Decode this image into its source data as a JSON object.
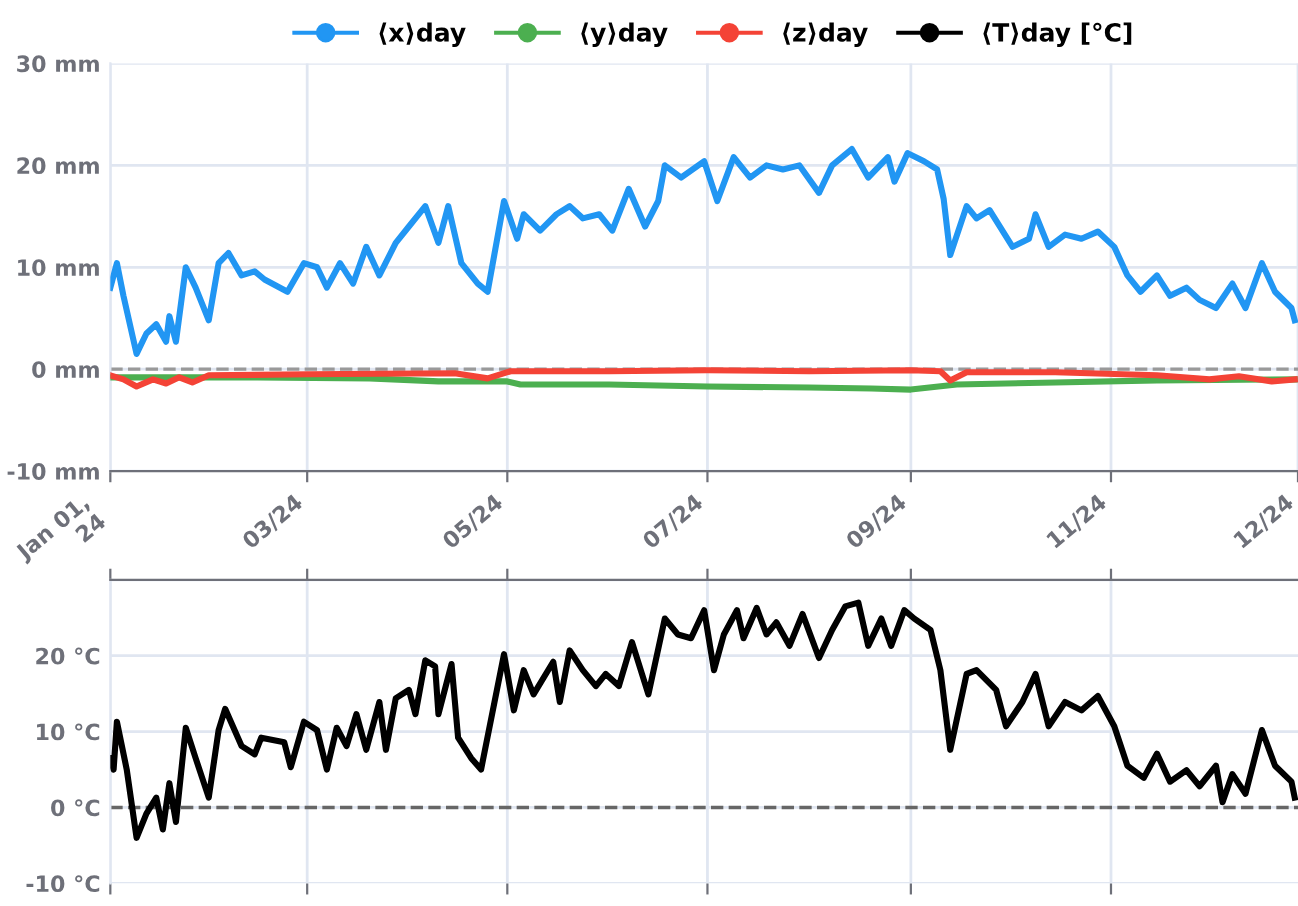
{
  "chart_data": [
    {
      "type": "line",
      "legend": "top",
      "grid": true,
      "xlim": [
        "2024-01-01",
        "2024-12-28"
      ],
      "xticks": [
        {
          "value": "2024-01-01",
          "label": "Jan 01,\n24"
        },
        {
          "value": "2024-03-01",
          "label": "03/24"
        },
        {
          "value": "2024-05-01",
          "label": "05/24"
        },
        {
          "value": "2024-07-01",
          "label": "07/24"
        },
        {
          "value": "2024-09-01",
          "label": "09/24"
        },
        {
          "value": "2024-11-01",
          "label": "11/24"
        },
        {
          "value": "2024-12-28",
          "label": "12/24"
        }
      ],
      "ylim": [
        -10,
        30
      ],
      "yticks": [
        {
          "value": -10,
          "label": "-10 mm"
        },
        {
          "value": 0,
          "label": "0 mm"
        },
        {
          "value": 10,
          "label": "10 mm"
        },
        {
          "value": 20,
          "label": "20 mm"
        },
        {
          "value": 30,
          "label": "30 mm"
        }
      ],
      "ref_lines": [
        {
          "axis": "y",
          "value": 0,
          "label": null,
          "color": "#999999",
          "line_style": "dashed"
        }
      ],
      "series": [
        {
          "name": "⟨x⟩day",
          "color": "#2196f3",
          "x": [
            "2024-01-01",
            "2024-01-03",
            "2024-01-05",
            "2024-01-09",
            "2024-01-12",
            "2024-01-15",
            "2024-01-18",
            "2024-01-19",
            "2024-01-21",
            "2024-01-24",
            "2024-01-27",
            "2024-01-31",
            "2024-02-03",
            "2024-02-06",
            "2024-02-10",
            "2024-02-14",
            "2024-02-17",
            "2024-02-24",
            "2024-02-29",
            "2024-03-04",
            "2024-03-07",
            "2024-03-11",
            "2024-03-15",
            "2024-03-19",
            "2024-03-23",
            "2024-03-28",
            "2024-04-01",
            "2024-04-06",
            "2024-04-10",
            "2024-04-13",
            "2024-04-17",
            "2024-04-22",
            "2024-04-25",
            "2024-04-30",
            "2024-05-04",
            "2024-05-06",
            "2024-05-11",
            "2024-05-16",
            "2024-05-20",
            "2024-05-24",
            "2024-05-29",
            "2024-06-02",
            "2024-06-07",
            "2024-06-12",
            "2024-06-16",
            "2024-06-18",
            "2024-06-23",
            "2024-06-30",
            "2024-07-04",
            "2024-07-09",
            "2024-07-14",
            "2024-07-19",
            "2024-07-24",
            "2024-07-29",
            "2024-08-04",
            "2024-08-08",
            "2024-08-14",
            "2024-08-19",
            "2024-08-25",
            "2024-08-27",
            "2024-08-31",
            "2024-09-05",
            "2024-09-09",
            "2024-09-11",
            "2024-09-13",
            "2024-09-18",
            "2024-09-21",
            "2024-09-25",
            "2024-10-02",
            "2024-10-07",
            "2024-10-09",
            "2024-10-13",
            "2024-10-18",
            "2024-10-23",
            "2024-10-28",
            "2024-11-02",
            "2024-11-06",
            "2024-11-10",
            "2024-11-15",
            "2024-11-19",
            "2024-11-24",
            "2024-11-28",
            "2024-12-03",
            "2024-12-08",
            "2024-12-12",
            "2024-12-17",
            "2024-12-21",
            "2024-12-26",
            "2024-12-27"
          ],
          "values": [
            8.0,
            10.4,
            7.2,
            1.5,
            3.5,
            4.4,
            2.7,
            5.2,
            2.7,
            10,
            8,
            4.8,
            10.4,
            11.4,
            9.2,
            9.6,
            8.8,
            7.6,
            10.4,
            10,
            8,
            10.4,
            8.4,
            12,
            9.2,
            12.4,
            14,
            16,
            12.4,
            16,
            10.4,
            8.4,
            7.6,
            16.5,
            12.8,
            15.2,
            13.6,
            15.2,
            16,
            14.8,
            15.2,
            13.6,
            17.7,
            14,
            16.5,
            20,
            18.8,
            20.4,
            16.5,
            20.8,
            18.8,
            20,
            19.6,
            20,
            17.3,
            20,
            21.6,
            18.8,
            20.8,
            18.4,
            21.2,
            20.4,
            19.6,
            16.7,
            11.2,
            16,
            14.8,
            15.6,
            12,
            12.8,
            15.2,
            12,
            13.2,
            12.8,
            13.5,
            12,
            9.2,
            7.6,
            9.2,
            7.2,
            8,
            6.8,
            6,
            8.4,
            6,
            10.4,
            7.6,
            6,
            4.8
          ]
        },
        {
          "name": "⟨y⟩day",
          "color": "#4caf50",
          "x": [
            "2024-01-01",
            "2024-02-15",
            "2024-03-20",
            "2024-04-10",
            "2024-05-01",
            "2024-05-05",
            "2024-06-01",
            "2024-07-01",
            "2024-08-01",
            "2024-08-20",
            "2024-09-01",
            "2024-09-15",
            "2024-10-15",
            "2024-11-15",
            "2024-12-27"
          ],
          "values": [
            -0.8,
            -0.8,
            -0.9,
            -1.2,
            -1.2,
            -1.5,
            -1.5,
            -1.7,
            -1.8,
            -1.9,
            -2.0,
            -1.5,
            -1.3,
            -1.1,
            -1.0
          ]
        },
        {
          "name": "⟨z⟩day",
          "color": "#f44336",
          "x": [
            "2024-01-01",
            "2024-01-05",
            "2024-01-09",
            "2024-01-14",
            "2024-01-18",
            "2024-01-22",
            "2024-01-26",
            "2024-01-31",
            "2024-03-01",
            "2024-04-15",
            "2024-04-25",
            "2024-05-02",
            "2024-06-01",
            "2024-07-01",
            "2024-08-01",
            "2024-09-01",
            "2024-09-10",
            "2024-09-13",
            "2024-09-18",
            "2024-10-15",
            "2024-11-15",
            "2024-12-01",
            "2024-12-10",
            "2024-12-20",
            "2024-12-27"
          ],
          "values": [
            -0.6,
            -1.0,
            -1.7,
            -1.0,
            -1.4,
            -0.8,
            -1.3,
            -0.6,
            -0.5,
            -0.4,
            -0.9,
            -0.2,
            -0.2,
            -0.1,
            -0.2,
            -0.1,
            -0.2,
            -1.1,
            -0.3,
            -0.3,
            -0.6,
            -1.0,
            -0.7,
            -1.2,
            -1.0
          ]
        }
      ]
    },
    {
      "type": "line",
      "legend": "top",
      "grid": true,
      "tick_labels": "y",
      "xlim": [
        "2024-01-01",
        "2024-12-28"
      ],
      "xticks": [
        {
          "value": "2024-01-01",
          "label": null
        },
        {
          "value": "2024-03-01",
          "label": null
        },
        {
          "value": "2024-05-01",
          "label": null
        },
        {
          "value": "2024-07-01",
          "label": null
        },
        {
          "value": "2024-09-01",
          "label": null
        },
        {
          "value": "2024-11-01",
          "label": null
        }
      ],
      "ylim": [
        -10,
        30
      ],
      "yticks": [
        {
          "value": -10,
          "label": "-10 °C"
        },
        {
          "value": 0,
          "label": "0 °C"
        },
        {
          "value": 10,
          "label": "10 °C"
        },
        {
          "value": 20,
          "label": "20 °C"
        },
        {
          "value": 30,
          "label": null
        }
      ],
      "ref_lines": [
        {
          "axis": "y",
          "value": 0,
          "label": null,
          "color": "#666666",
          "line_style": "dashed"
        }
      ],
      "series": [
        {
          "name": "⟨T⟩day [°C]",
          "color": "#000000",
          "x": [
            "2024-01-01",
            "2024-01-02",
            "2024-01-03",
            "2024-01-06",
            "2024-01-09",
            "2024-01-12",
            "2024-01-15",
            "2024-01-17",
            "2024-01-19",
            "2024-01-21",
            "2024-01-24",
            "2024-01-27",
            "2024-01-31",
            "2024-02-03",
            "2024-02-05",
            "2024-02-10",
            "2024-02-14",
            "2024-02-16",
            "2024-02-23",
            "2024-02-25",
            "2024-02-29",
            "2024-03-04",
            "2024-03-07",
            "2024-03-10",
            "2024-03-13",
            "2024-03-16",
            "2024-03-19",
            "2024-03-23",
            "2024-03-25",
            "2024-03-28",
            "2024-04-01",
            "2024-04-03",
            "2024-04-06",
            "2024-04-09",
            "2024-04-10",
            "2024-04-14",
            "2024-04-16",
            "2024-04-20",
            "2024-04-23",
            "2024-04-30",
            "2024-05-03",
            "2024-05-06",
            "2024-05-09",
            "2024-05-15",
            "2024-05-17",
            "2024-05-20",
            "2024-05-24",
            "2024-05-28",
            "2024-05-31",
            "2024-06-04",
            "2024-06-08",
            "2024-06-13",
            "2024-06-18",
            "2024-06-22",
            "2024-06-26",
            "2024-06-30",
            "2024-07-03",
            "2024-07-06",
            "2024-07-10",
            "2024-07-12",
            "2024-07-16",
            "2024-07-19",
            "2024-07-22",
            "2024-07-26",
            "2024-07-30",
            "2024-08-04",
            "2024-08-08",
            "2024-08-12",
            "2024-08-16",
            "2024-08-19",
            "2024-08-23",
            "2024-08-26",
            "2024-08-30",
            "2024-09-02",
            "2024-09-07",
            "2024-09-10",
            "2024-09-13",
            "2024-09-18",
            "2024-09-21",
            "2024-09-27",
            "2024-09-30",
            "2024-10-05",
            "2024-10-09",
            "2024-10-13",
            "2024-10-18",
            "2024-10-23",
            "2024-10-28",
            "2024-11-02",
            "2024-11-06",
            "2024-11-11",
            "2024-11-15",
            "2024-11-19",
            "2024-11-24",
            "2024-11-28",
            "2024-12-03",
            "2024-12-05",
            "2024-12-08",
            "2024-12-12",
            "2024-12-17",
            "2024-12-21",
            "2024-12-26",
            "2024-12-27"
          ],
          "values": [
            6.5,
            5,
            11.3,
            5,
            -4,
            -0.8,
            1.3,
            -2.9,
            3.2,
            -1.9,
            10.5,
            6.5,
            1.3,
            10.2,
            13,
            8.1,
            7,
            9.2,
            8.6,
            5.3,
            11.3,
            10.2,
            5,
            10.5,
            8.1,
            12.3,
            7.6,
            13.9,
            7.6,
            14.4,
            15.5,
            12.3,
            19.4,
            18.6,
            12.3,
            18.9,
            9.2,
            6.5,
            5,
            20.2,
            12.8,
            18.1,
            14.9,
            19.2,
            13.9,
            20.7,
            18.1,
            16,
            17.6,
            16,
            21.8,
            14.9,
            24.9,
            22.8,
            22.3,
            26,
            18.1,
            22.8,
            26,
            22.3,
            26.3,
            22.8,
            24.4,
            21.3,
            25.5,
            19.7,
            23.4,
            26.5,
            27,
            21.3,
            24.9,
            21.3,
            26,
            24.9,
            23.4,
            18.1,
            7.6,
            17.6,
            18.1,
            15.5,
            10.7,
            13.9,
            17.6,
            10.7,
            13.9,
            12.8,
            14.7,
            10.7,
            5.5,
            3.9,
            7.1,
            3.4,
            4.9,
            2.8,
            5.5,
            0.7,
            4.4,
            1.8,
            10.2,
            5.5,
            3.4,
            1.3
          ]
        }
      ]
    }
  ]
}
